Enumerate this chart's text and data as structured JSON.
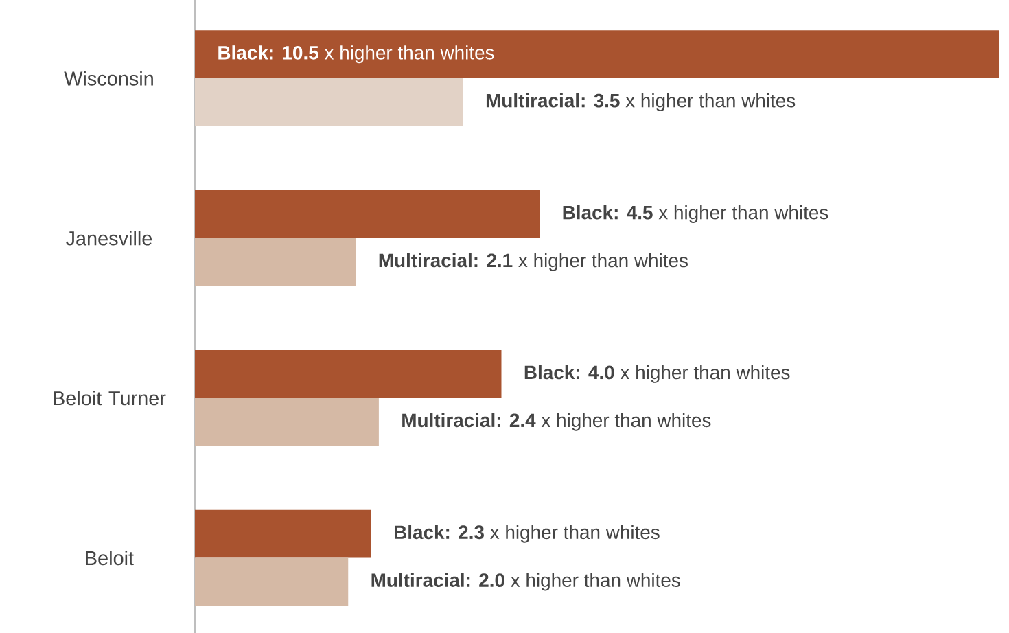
{
  "chart_data": {
    "type": "bar",
    "orientation": "horizontal",
    "categories": [
      "Wisconsin",
      "Janesville",
      "Beloit Turner",
      "Beloit"
    ],
    "series": [
      {
        "color": "#a9532f",
        "values": [
          10.5,
          4.5,
          4.0,
          2.3
        ],
        "value_labels": [
          "**Black: 10.5** x higher than whites",
          "**Black: 4.5** x higher than whites",
          "**Black: 4.0** x higher than whites",
          "**Black: 2.3** x higher than whites"
        ]
      },
      {
        "color": "#d5b9a5",
        "colors": [
          "#e2d2c6",
          "#d5b9a5",
          "#d5b9a5",
          "#d5b9a5"
        ],
        "values": [
          3.5,
          2.1,
          2.4,
          2.0
        ],
        "value_labels": [
          "**Multiracial: 3.5** x higher than whites",
          "**Multiracial: 2.1** x higher than whites",
          "**Multiracial: 2.4** x higher than whites",
          "**Multiracial: 2.0** x higher than whites"
        ]
      }
    ]
  }
}
